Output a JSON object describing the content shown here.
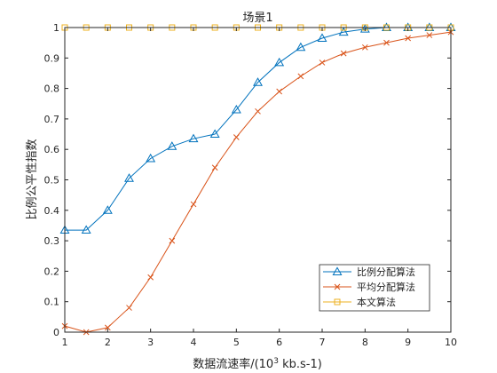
{
  "chart_data": {
    "type": "line",
    "title": "场景1",
    "xlabel_main": "数据流速率/(10",
    "xlabel_sup": "3",
    "xlabel_tail": " kb.s-1)",
    "ylabel": "比例公平性指数",
    "xlim": [
      1,
      10
    ],
    "ylim": [
      0,
      1
    ],
    "xticks": [
      "1",
      "2",
      "3",
      "4",
      "5",
      "6",
      "7",
      "8",
      "9",
      "10"
    ],
    "yticks": [
      "0",
      "0.1",
      "0.2",
      "0.3",
      "0.4",
      "0.5",
      "0.6",
      "0.7",
      "0.8",
      "0.9",
      "1"
    ],
    "grid": false,
    "legend_position": "bottom-right",
    "x": [
      1,
      1.5,
      2,
      2.5,
      3,
      3.5,
      4,
      4.5,
      5,
      5.5,
      6,
      6.5,
      7,
      7.5,
      8,
      8.5,
      9,
      9.5,
      10
    ],
    "series": [
      {
        "name": "比例分配算法",
        "color": "#0072BD",
        "marker": "triangle",
        "values": [
          0.335,
          0.335,
          0.4,
          0.505,
          0.57,
          0.61,
          0.635,
          0.65,
          0.73,
          0.82,
          0.885,
          0.935,
          0.965,
          0.985,
          0.995,
          1.0,
          1.0,
          1.0,
          1.0
        ]
      },
      {
        "name": "平均分配算法",
        "color": "#D95319",
        "marker": "x",
        "values": [
          0.02,
          0.0,
          0.015,
          0.08,
          0.18,
          0.3,
          0.42,
          0.54,
          0.64,
          0.725,
          0.79,
          0.84,
          0.885,
          0.915,
          0.935,
          0.95,
          0.965,
          0.975,
          0.985
        ]
      },
      {
        "name": "本文算法",
        "color": "#EDB120",
        "marker": "square",
        "values": [
          1,
          1,
          1,
          1,
          1,
          1,
          1,
          1,
          1,
          1,
          1,
          1,
          1,
          1,
          1,
          1,
          1,
          1,
          1
        ]
      }
    ]
  }
}
